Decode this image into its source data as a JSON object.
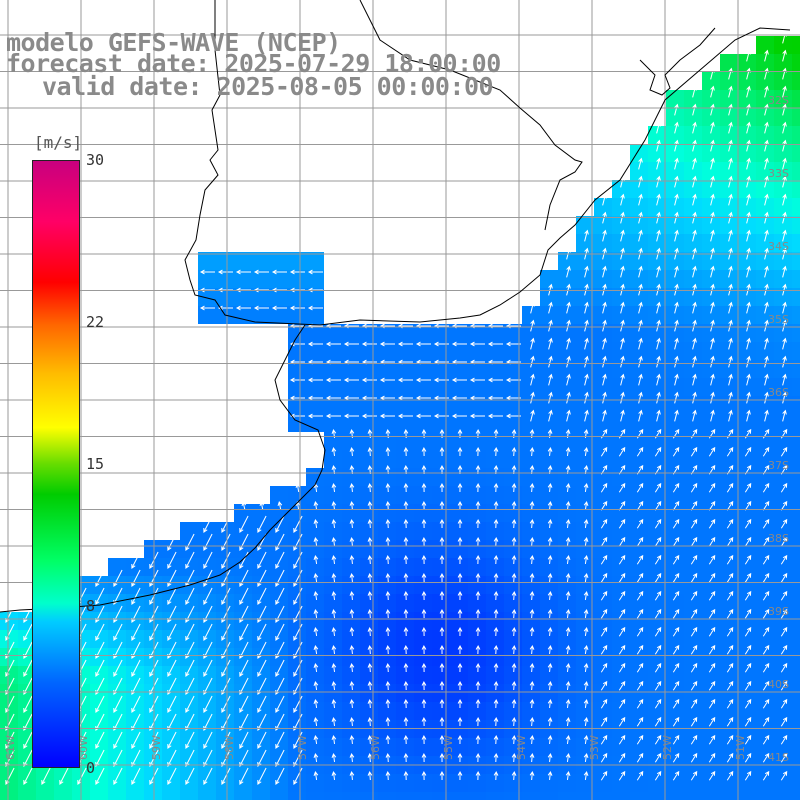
{
  "title": {
    "line1": "modelo GEFS-WAVE (NCEP)",
    "line2": "forecast date: 2025-07-29 18:00:00",
    "line3": "valid date: 2025-08-05 00:00:00"
  },
  "colorbar": {
    "units": "[m/s]",
    "min": 0,
    "max": 30,
    "ticks": [
      "30",
      "22",
      "15",
      "8",
      "0"
    ],
    "tick_values": [
      30,
      22,
      15,
      8,
      0
    ]
  },
  "grid": {
    "lat_labels": [
      "32S",
      "33S",
      "34S",
      "35S",
      "36S",
      "37S",
      "38S",
      "39S",
      "40S",
      "41S"
    ],
    "lon_labels": [
      "61W",
      "60W",
      "59W",
      "58W",
      "57W",
      "56W",
      "55W",
      "54W",
      "53W",
      "52W",
      "51W"
    ]
  },
  "colors": {
    "land": "#ffffff",
    "coast": "#000000",
    "grid": "#999999",
    "title": "#8a8a8a",
    "arrow": "#ffffff"
  }
}
